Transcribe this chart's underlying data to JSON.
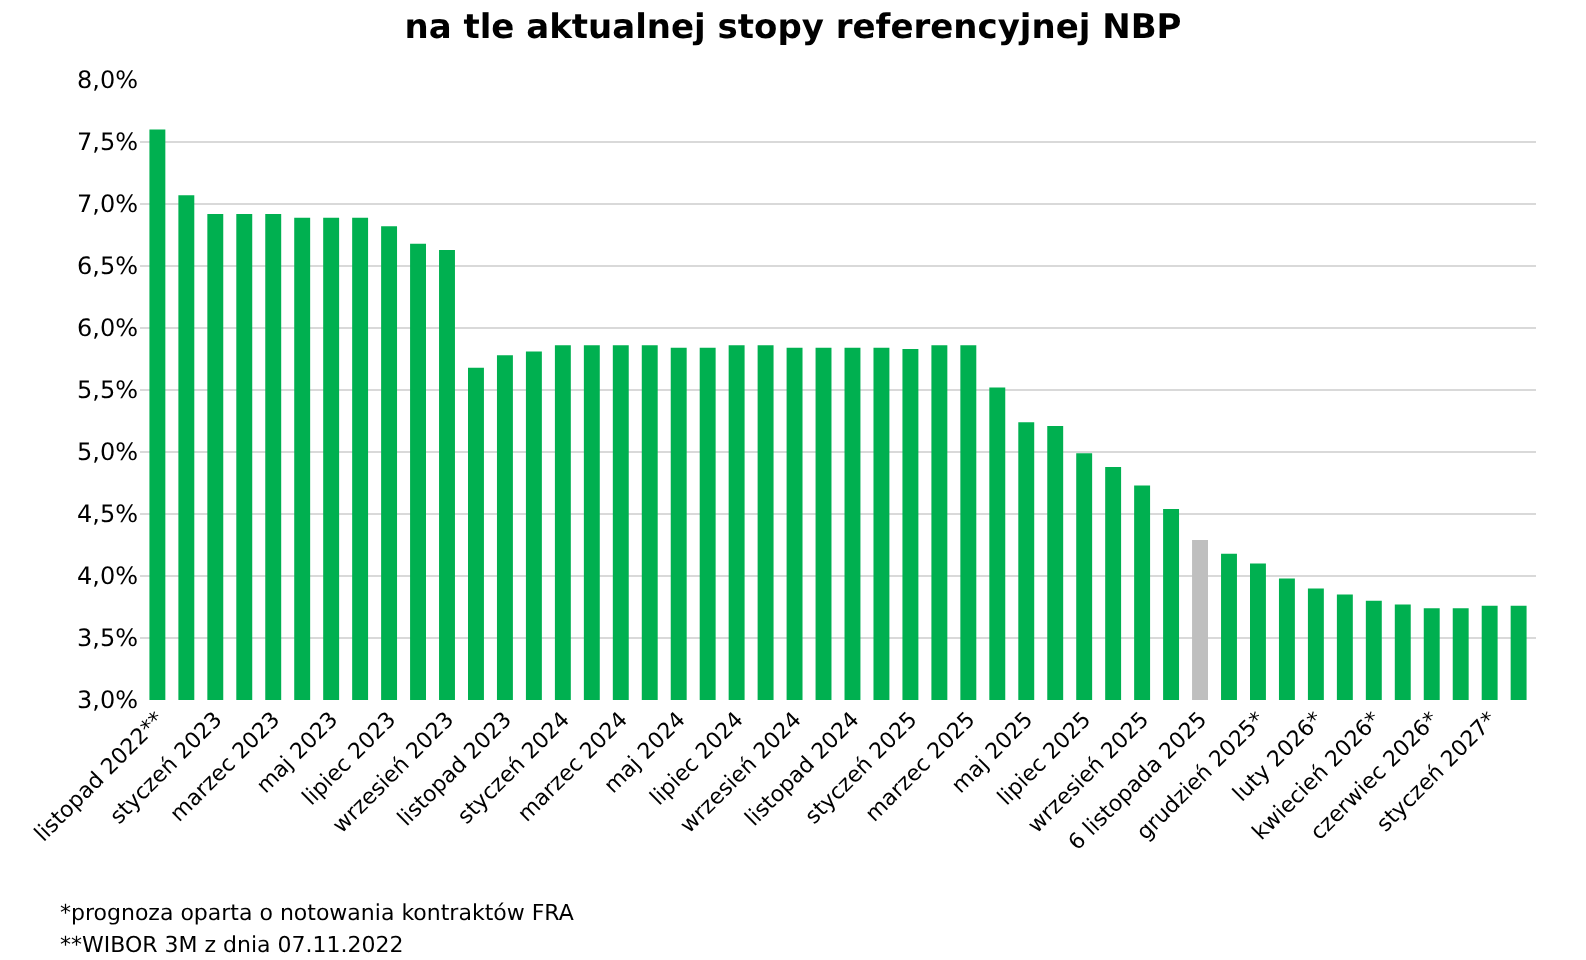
{
  "chart_data": {
    "type": "bar",
    "title": "na tle aktualnej stopy referencyjnej NBP",
    "categories": [
      "listopad 2022**",
      null,
      "styczeń 2023",
      null,
      "marzec 2023",
      null,
      "maj 2023",
      null,
      "lipiec 2023",
      null,
      "wrzesień 2023",
      null,
      "listopad 2023",
      null,
      "styczeń 2024",
      null,
      "marzec 2024",
      null,
      "maj 2024",
      null,
      "lipiec 2024",
      null,
      "wrzesień 2024",
      null,
      "listopad 2024",
      null,
      "styczeń 2025",
      null,
      "marzec 2025",
      null,
      "maj 2025",
      null,
      "lipiec 2025",
      null,
      "wrzesień 2025",
      null,
      "6 listopada 2025",
      null,
      "grudzień 2025*",
      null,
      "luty 2026*",
      null,
      "kwiecień 2026*",
      null,
      "czerwiec 2026*",
      null,
      "styczeń 2027*",
      null
    ],
    "values": [
      7.6,
      7.07,
      6.92,
      6.92,
      6.92,
      6.89,
      6.89,
      6.89,
      6.82,
      6.68,
      6.63,
      5.68,
      5.78,
      5.81,
      5.86,
      5.86,
      5.86,
      5.86,
      5.84,
      5.84,
      5.86,
      5.86,
      5.84,
      5.84,
      5.84,
      5.84,
      5.83,
      5.86,
      5.86,
      5.52,
      5.24,
      5.21,
      4.99,
      4.88,
      4.73,
      4.54,
      4.29,
      4.18,
      4.1,
      3.98,
      3.9,
      3.85,
      3.8,
      3.77,
      3.74,
      3.74,
      3.76,
      3.76
    ],
    "colors": [
      "#00b050",
      "#00b050",
      "#00b050",
      "#00b050",
      "#00b050",
      "#00b050",
      "#00b050",
      "#00b050",
      "#00b050",
      "#00b050",
      "#00b050",
      "#00b050",
      "#00b050",
      "#00b050",
      "#00b050",
      "#00b050",
      "#00b050",
      "#00b050",
      "#00b050",
      "#00b050",
      "#00b050",
      "#00b050",
      "#00b050",
      "#00b050",
      "#00b050",
      "#00b050",
      "#00b050",
      "#00b050",
      "#00b050",
      "#00b050",
      "#00b050",
      "#00b050",
      "#00b050",
      "#00b050",
      "#00b050",
      "#00b050",
      "#bfbfbf",
      "#00b050",
      "#00b050",
      "#00b050",
      "#00b050",
      "#00b050",
      "#00b050",
      "#00b050",
      "#00b050",
      "#00b050",
      "#00b050",
      "#00b050"
    ],
    "ylim": [
      3.0,
      8.0
    ],
    "yticks": [
      {
        "value": 3.0,
        "label": "3,0%"
      },
      {
        "value": 3.5,
        "label": "3,5%"
      },
      {
        "value": 4.0,
        "label": "4,0%"
      },
      {
        "value": 4.5,
        "label": "4,5%"
      },
      {
        "value": 5.0,
        "label": "5,0%"
      },
      {
        "value": 5.5,
        "label": "5,5%"
      },
      {
        "value": 6.0,
        "label": "6,0%"
      },
      {
        "value": 6.5,
        "label": "6,5%"
      },
      {
        "value": 7.0,
        "label": "7,0%"
      },
      {
        "value": 7.5,
        "label": "7,5%"
      },
      {
        "value": 8.0,
        "label": "8,0%"
      }
    ],
    "grid": "y",
    "annotations": [
      "*prognoza oparta o notowania kontraktów FRA",
      "**WIBOR 3M z dnia 07.11.2022"
    ]
  }
}
